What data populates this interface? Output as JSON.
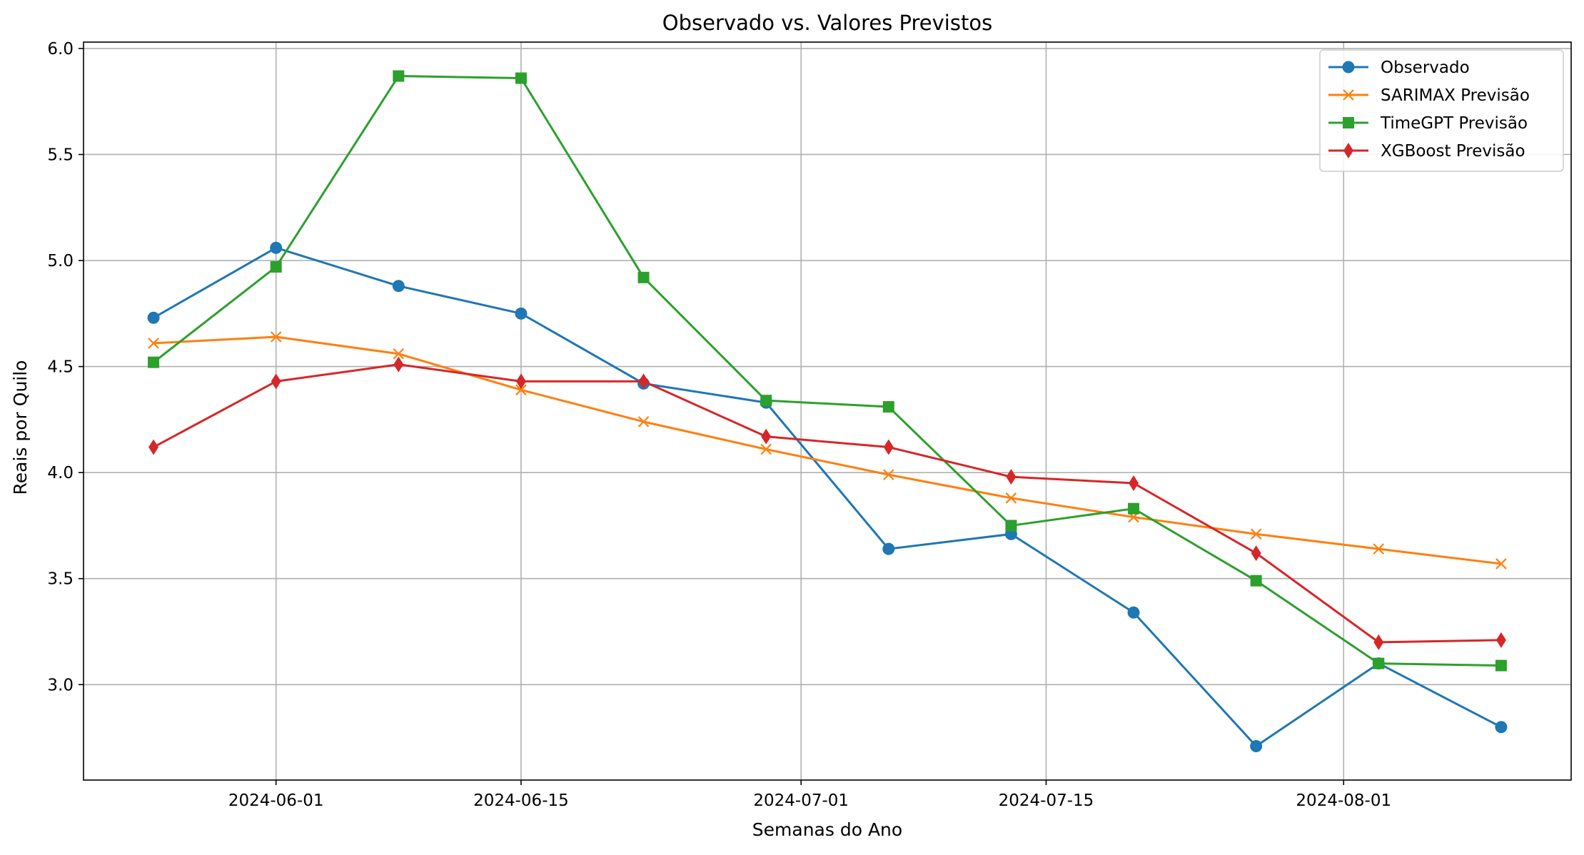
{
  "chart_data": {
    "type": "line",
    "title": "Observado vs. Valores Previstos",
    "xlabel": "Semanas do Ano",
    "ylabel": "Reais por Quilo",
    "x": [
      "2024-05-25",
      "2024-06-01",
      "2024-06-08",
      "2024-06-15",
      "2024-06-22",
      "2024-06-29",
      "2024-07-06",
      "2024-07-13",
      "2024-07-20",
      "2024-07-27",
      "2024-08-03",
      "2024-08-10"
    ],
    "x_ticks": [
      "2024-06-01",
      "2024-06-15",
      "2024-07-01",
      "2024-07-15",
      "2024-08-01"
    ],
    "x_range": [
      "2024-05-21",
      "2024-08-14"
    ],
    "y_ticks": [
      "3.0",
      "3.5",
      "4.0",
      "4.5",
      "5.0",
      "5.5",
      "6.0"
    ],
    "ylim": [
      2.55,
      6.03
    ],
    "grid": true,
    "legend_position": "top-right",
    "series": [
      {
        "name": "Observado",
        "color": "#1f77b4",
        "marker": "circle",
        "values": [
          4.73,
          5.06,
          4.88,
          4.75,
          4.42,
          4.33,
          3.64,
          3.71,
          3.34,
          2.71,
          3.1,
          2.8
        ]
      },
      {
        "name": "SARIMAX Previsão",
        "color": "#ff7f0e",
        "marker": "x",
        "values": [
          4.61,
          4.64,
          4.56,
          4.39,
          4.24,
          4.11,
          3.99,
          3.88,
          3.79,
          3.71,
          3.64,
          3.57
        ]
      },
      {
        "name": "TimeGPT Previsão",
        "color": "#2ca02c",
        "marker": "square",
        "values": [
          4.52,
          4.97,
          5.87,
          5.86,
          4.92,
          4.34,
          4.31,
          3.75,
          3.83,
          3.49,
          3.1,
          3.09
        ]
      },
      {
        "name": "XGBoost Previsão",
        "color": "#d62728",
        "marker": "diamond",
        "values": [
          4.12,
          4.43,
          4.51,
          4.43,
          4.43,
          4.17,
          4.12,
          3.98,
          3.95,
          3.62,
          3.2,
          3.21
        ]
      }
    ]
  }
}
